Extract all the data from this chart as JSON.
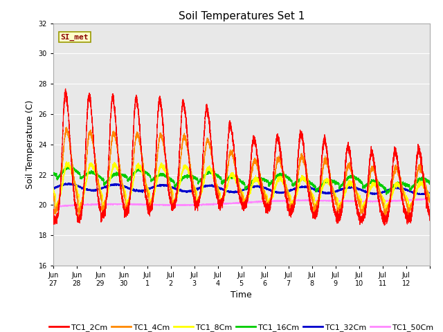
{
  "title": "Soil Temperatures Set 1",
  "xlabel": "Time",
  "ylabel": "Soil Temperature (C)",
  "ylim": [
    16,
    32
  ],
  "yticks": [
    16,
    18,
    20,
    22,
    24,
    26,
    28,
    30,
    32
  ],
  "xtick_labels": [
    "Jun\n27",
    "Jun\n28",
    "Jun\n29",
    "Jun\n30",
    "Jul\n1",
    "Jul\n2",
    "Jul\n3",
    "Jul\n4",
    "Jul\n5",
    "Jul\n6",
    "Jul\n7",
    "Jul\n8",
    "Jul\n9",
    "Jul\n10",
    "Jul\n11",
    "Jul\n12"
  ],
  "background_color": "#e8e8e8",
  "annotation_text": "SI_met",
  "annotation_color": "#8b0000",
  "annotation_bg": "#ffffcc",
  "legend_entries": [
    "TC1_2Cm",
    "TC1_4Cm",
    "TC1_8Cm",
    "TC1_16Cm",
    "TC1_32Cm",
    "TC1_50Cm"
  ],
  "line_colors": [
    "#ff0000",
    "#ff8800",
    "#ffff00",
    "#00cc00",
    "#0000cc",
    "#ff88ff"
  ]
}
